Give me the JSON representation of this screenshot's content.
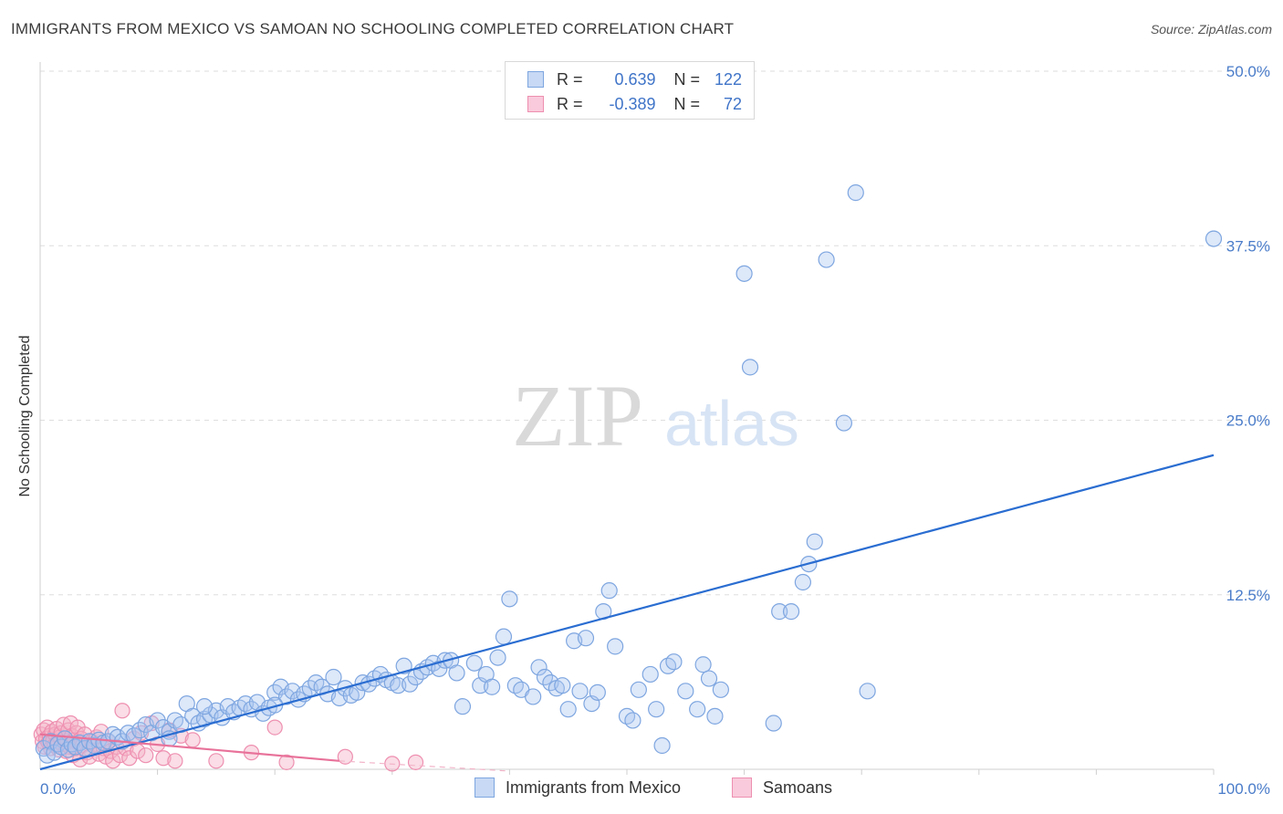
{
  "header": {
    "title": "IMMIGRANTS FROM MEXICO VS SAMOAN NO SCHOOLING COMPLETED CORRELATION CHART",
    "source": "Source: ZipAtlas.com"
  },
  "watermark": {
    "zip": "ZIP",
    "atlas": "atlas"
  },
  "legend": {
    "rows": [
      {
        "r_label": "R =",
        "r_value": "0.639",
        "n_label": "N =",
        "n_value": "122"
      },
      {
        "r_label": "R =",
        "r_value": "-0.389",
        "n_label": "N =",
        "n_value": "72"
      }
    ]
  },
  "colors": {
    "blue_fill": "#aac6ef",
    "blue_stroke": "#7ea6e0",
    "blue_line": "#2a6dd1",
    "pink_fill": "#f5b3c8",
    "pink_stroke": "#ee8fb0",
    "pink_line": "#e8729a"
  },
  "chart_data": {
    "type": "scatter",
    "title": "IMMIGRANTS FROM MEXICO VS SAMOAN NO SCHOOLING COMPLETED CORRELATION CHART",
    "xlabel": "",
    "ylabel": "No Schooling Completed",
    "xlim": [
      0,
      100
    ],
    "ylim": [
      0,
      50
    ],
    "x_tick_labels": [
      "0.0%",
      "100.0%"
    ],
    "y_ticks": [
      12.5,
      25.0,
      37.5,
      50.0
    ],
    "y_tick_labels": [
      "12.5%",
      "25.0%",
      "37.5%",
      "50.0%"
    ],
    "grid": true,
    "legend_position": "bottom-center",
    "series": [
      {
        "name": "Immigrants from Mexico",
        "R": 0.639,
        "N": 122,
        "trendline": {
          "x": [
            0,
            100
          ],
          "y": [
            0.0,
            22.5
          ]
        },
        "points": [
          [
            0.3,
            1.5
          ],
          [
            0.6,
            1.0
          ],
          [
            0.9,
            2.0
          ],
          [
            1.2,
            1.2
          ],
          [
            1.5,
            1.8
          ],
          [
            1.8,
            1.6
          ],
          [
            2.1,
            2.2
          ],
          [
            2.4,
            1.4
          ],
          [
            2.7,
            1.8
          ],
          [
            3.0,
            1.6
          ],
          [
            3.4,
            1.9
          ],
          [
            3.8,
            1.5
          ],
          [
            4.2,
            2.0
          ],
          [
            4.6,
            1.7
          ],
          [
            5.0,
            2.1
          ],
          [
            5.4,
            1.9
          ],
          [
            5.8,
            2.0
          ],
          [
            6.2,
            2.5
          ],
          [
            6.6,
            2.3
          ],
          [
            7.0,
            2.0
          ],
          [
            7.5,
            2.6
          ],
          [
            8.0,
            2.4
          ],
          [
            8.5,
            2.8
          ],
          [
            9.0,
            3.2
          ],
          [
            9.5,
            2.6
          ],
          [
            10.0,
            3.5
          ],
          [
            10.5,
            3.0
          ],
          [
            11.0,
            2.7
          ],
          [
            11.5,
            3.5
          ],
          [
            12.0,
            3.2
          ],
          [
            12.5,
            4.7
          ],
          [
            13.0,
            3.8
          ],
          [
            13.5,
            3.3
          ],
          [
            14.0,
            3.6
          ],
          [
            14.5,
            3.9
          ],
          [
            15.0,
            4.2
          ],
          [
            15.5,
            3.7
          ],
          [
            16.0,
            4.5
          ],
          [
            16.5,
            4.1
          ],
          [
            17.0,
            4.4
          ],
          [
            17.5,
            4.7
          ],
          [
            18.0,
            4.3
          ],
          [
            18.5,
            4.8
          ],
          [
            19.0,
            4.0
          ],
          [
            19.5,
            4.4
          ],
          [
            20.0,
            5.5
          ],
          [
            20.5,
            5.9
          ],
          [
            21.0,
            5.2
          ],
          [
            21.5,
            5.6
          ],
          [
            22.0,
            5.0
          ],
          [
            22.5,
            5.4
          ],
          [
            23.0,
            5.8
          ],
          [
            23.5,
            6.2
          ],
          [
            24.0,
            5.9
          ],
          [
            24.5,
            5.4
          ],
          [
            25.0,
            6.6
          ],
          [
            25.5,
            5.1
          ],
          [
            26.0,
            5.8
          ],
          [
            26.5,
            5.3
          ],
          [
            27.0,
            5.5
          ],
          [
            27.5,
            6.2
          ],
          [
            28.0,
            6.1
          ],
          [
            28.5,
            6.5
          ],
          [
            29.0,
            6.8
          ],
          [
            29.5,
            6.4
          ],
          [
            30.0,
            6.2
          ],
          [
            30.5,
            6.0
          ],
          [
            31.0,
            7.4
          ],
          [
            31.5,
            6.1
          ],
          [
            32.0,
            6.6
          ],
          [
            32.5,
            7.0
          ],
          [
            33.0,
            7.3
          ],
          [
            33.5,
            7.6
          ],
          [
            34.0,
            7.2
          ],
          [
            34.5,
            7.8
          ],
          [
            35.0,
            7.8
          ],
          [
            35.5,
            6.9
          ],
          [
            36.0,
            4.5
          ],
          [
            37.0,
            7.6
          ],
          [
            37.5,
            6.0
          ],
          [
            38.0,
            6.8
          ],
          [
            38.5,
            5.9
          ],
          [
            39.0,
            8.0
          ],
          [
            39.5,
            9.5
          ],
          [
            40.0,
            12.2
          ],
          [
            40.5,
            6.0
          ],
          [
            41.0,
            5.7
          ],
          [
            42.0,
            5.2
          ],
          [
            42.5,
            7.3
          ],
          [
            43.0,
            6.6
          ],
          [
            43.5,
            6.2
          ],
          [
            44.0,
            5.8
          ],
          [
            44.5,
            6.0
          ],
          [
            45.0,
            4.3
          ],
          [
            45.5,
            9.2
          ],
          [
            46.0,
            5.6
          ],
          [
            46.5,
            9.4
          ],
          [
            47.0,
            4.7
          ],
          [
            47.5,
            5.5
          ],
          [
            48.0,
            11.3
          ],
          [
            48.5,
            12.8
          ],
          [
            49.0,
            8.8
          ],
          [
            50.0,
            3.8
          ],
          [
            50.5,
            3.5
          ],
          [
            51.0,
            5.7
          ],
          [
            52.0,
            6.8
          ],
          [
            52.5,
            4.3
          ],
          [
            53.0,
            1.7
          ],
          [
            53.5,
            7.4
          ],
          [
            54.0,
            7.7
          ],
          [
            55.0,
            5.6
          ],
          [
            56.0,
            4.3
          ],
          [
            56.5,
            7.5
          ],
          [
            57.0,
            6.5
          ],
          [
            57.5,
            3.8
          ],
          [
            58.0,
            5.7
          ],
          [
            60.5,
            28.8
          ],
          [
            62.5,
            3.3
          ],
          [
            63.0,
            11.3
          ],
          [
            64.0,
            11.3
          ],
          [
            65.0,
            13.4
          ],
          [
            65.5,
            14.7
          ],
          [
            66.0,
            16.3
          ],
          [
            67.0,
            36.5
          ],
          [
            68.5,
            24.8
          ],
          [
            60.0,
            35.5
          ],
          [
            69.5,
            41.3
          ],
          [
            70.5,
            5.6
          ],
          [
            100.0,
            38.0
          ],
          [
            20.0,
            4.6
          ],
          [
            14.0,
            4.5
          ],
          [
            11.0,
            2.2
          ]
        ]
      },
      {
        "name": "Samoans",
        "R": -0.389,
        "N": 72,
        "trendline": {
          "x": [
            0,
            25.5
          ],
          "y": [
            2.5,
            0.6
          ]
        },
        "trendline_dashed": {
          "x": [
            25.5,
            40
          ],
          "y": [
            0.6,
            -0.5
          ]
        },
        "points": [
          [
            0.1,
            2.5
          ],
          [
            0.2,
            2.0
          ],
          [
            0.3,
            2.8
          ],
          [
            0.4,
            1.6
          ],
          [
            0.5,
            2.2
          ],
          [
            0.6,
            3.0
          ],
          [
            0.7,
            1.9
          ],
          [
            0.8,
            2.4
          ],
          [
            0.9,
            1.5
          ],
          [
            1.0,
            2.7
          ],
          [
            1.1,
            2.1
          ],
          [
            1.2,
            1.7
          ],
          [
            1.3,
            2.5
          ],
          [
            1.4,
            2.9
          ],
          [
            1.5,
            2.0
          ],
          [
            1.6,
            1.4
          ],
          [
            1.7,
            2.3
          ],
          [
            1.8,
            2.6
          ],
          [
            1.9,
            1.8
          ],
          [
            2.0,
            3.2
          ],
          [
            2.1,
            2.2
          ],
          [
            2.2,
            1.3
          ],
          [
            2.3,
            2.0
          ],
          [
            2.4,
            2.8
          ],
          [
            2.5,
            1.6
          ],
          [
            2.6,
            3.3
          ],
          [
            2.7,
            2.4
          ],
          [
            2.8,
            1.0
          ],
          [
            2.9,
            2.1
          ],
          [
            3.0,
            1.5
          ],
          [
            3.1,
            2.6
          ],
          [
            3.2,
            3.0
          ],
          [
            3.3,
            1.9
          ],
          [
            3.4,
            0.7
          ],
          [
            3.5,
            2.2
          ],
          [
            3.6,
            1.7
          ],
          [
            3.8,
            2.5
          ],
          [
            4.0,
            1.2
          ],
          [
            4.2,
            0.9
          ],
          [
            4.4,
            2.0
          ],
          [
            4.6,
            1.8
          ],
          [
            4.8,
            2.3
          ],
          [
            5.0,
            1.1
          ],
          [
            5.2,
            2.7
          ],
          [
            5.4,
            1.5
          ],
          [
            5.6,
            0.9
          ],
          [
            5.8,
            2.0
          ],
          [
            6.0,
            1.3
          ],
          [
            6.2,
            0.6
          ],
          [
            6.5,
            1.6
          ],
          [
            6.8,
            1.0
          ],
          [
            7.0,
            4.2
          ],
          [
            7.3,
            1.5
          ],
          [
            7.6,
            0.8
          ],
          [
            8.0,
            2.2
          ],
          [
            8.3,
            1.3
          ],
          [
            8.6,
            2.6
          ],
          [
            9.0,
            1.0
          ],
          [
            9.5,
            3.3
          ],
          [
            10.0,
            1.8
          ],
          [
            10.5,
            0.8
          ],
          [
            11.0,
            2.8
          ],
          [
            11.5,
            0.6
          ],
          [
            12.0,
            2.4
          ],
          [
            13.0,
            2.1
          ],
          [
            15.0,
            0.6
          ],
          [
            18.0,
            1.2
          ],
          [
            20.0,
            3.0
          ],
          [
            21.0,
            0.5
          ],
          [
            26.0,
            0.9
          ],
          [
            30.0,
            0.4
          ],
          [
            32.0,
            0.5
          ]
        ]
      }
    ]
  },
  "bottom_legend": {
    "items": [
      {
        "label": "Immigrants from Mexico"
      },
      {
        "label": "Samoans"
      }
    ]
  }
}
